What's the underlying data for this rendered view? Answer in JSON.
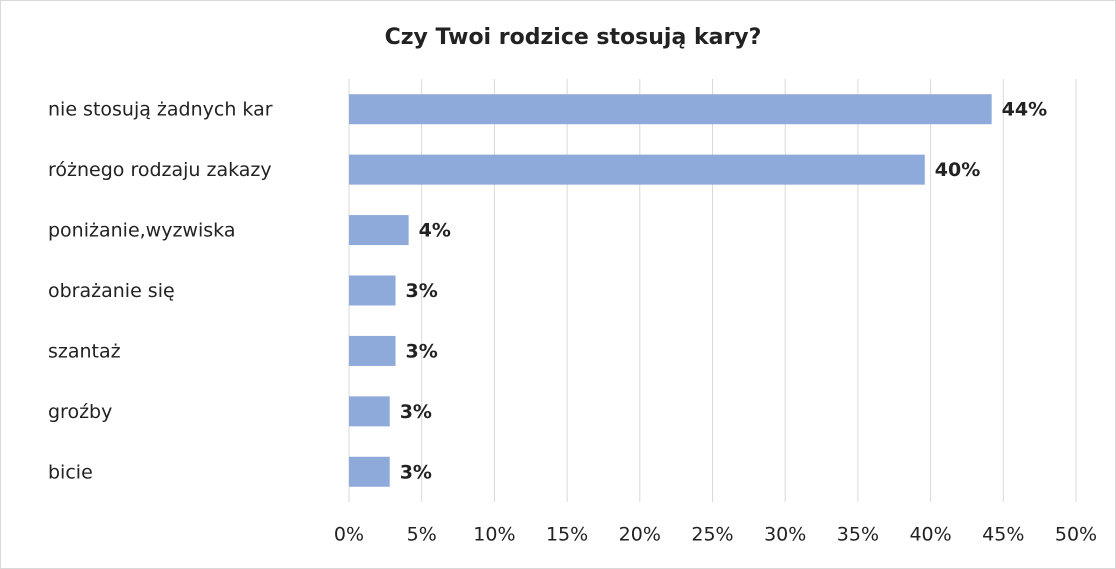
{
  "chart_data": {
    "type": "bar",
    "orientation": "horizontal",
    "title": "Czy Twoi rodzice stosują kary?",
    "categories": [
      "nie stosują żadnych kar",
      "różnego rodzaju zakazy",
      "poniżanie,wyzwiska",
      "obrażanie się",
      "szantaż",
      "groźby",
      "bicie"
    ],
    "values": [
      44.2,
      39.6,
      4.1,
      3.2,
      3.2,
      2.8,
      2.8
    ],
    "value_labels": [
      "44%",
      "40%",
      "4%",
      "3%",
      "3%",
      "3%",
      "3%"
    ],
    "color": "#8eaadb",
    "xlim": [
      0,
      50
    ],
    "xticks": [
      {
        "value": 0,
        "label": "0%"
      },
      {
        "value": 5,
        "label": "5%"
      },
      {
        "value": 10,
        "label": "10%"
      },
      {
        "value": 15,
        "label": "15%"
      },
      {
        "value": 20,
        "label": "20%"
      },
      {
        "value": 25,
        "label": "25%"
      },
      {
        "value": 30,
        "label": "30%"
      },
      {
        "value": 35,
        "label": "35%"
      },
      {
        "value": 40,
        "label": "40%"
      },
      {
        "value": 45,
        "label": "45%"
      },
      {
        "value": 50,
        "label": "50%"
      }
    ],
    "grid": true
  }
}
